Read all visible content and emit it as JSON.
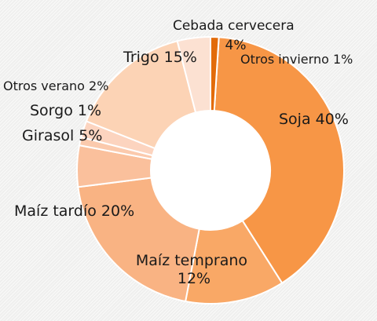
{
  "chart_data": {
    "type": "pie",
    "variant": "donut",
    "slices": [
      {
        "label": "Soja 40%",
        "value": 40,
        "color": "#f79646"
      },
      {
        "label": "Maíz temprano 12%",
        "value": 12,
        "color": "#f9a866"
      },
      {
        "label": "Maíz tardío 20%",
        "value": 20,
        "color": "#f9b383"
      },
      {
        "label": "Girasol 5%",
        "value": 5,
        "color": "#fac09c"
      },
      {
        "label": "Sorgo 1%",
        "value": 1,
        "color": "#fbcaad"
      },
      {
        "label": "Otros verano 2%",
        "value": 2,
        "color": "#fcd4bf"
      },
      {
        "label": "Trigo 15%",
        "value": 15,
        "color": "#fcd3b5"
      },
      {
        "label": "Cebada cervecera 4%",
        "value": 4,
        "color": "#fce1d2"
      },
      {
        "label": "Otros invierno 1%",
        "value": 1,
        "color": "#e26b0a"
      }
    ]
  }
}
